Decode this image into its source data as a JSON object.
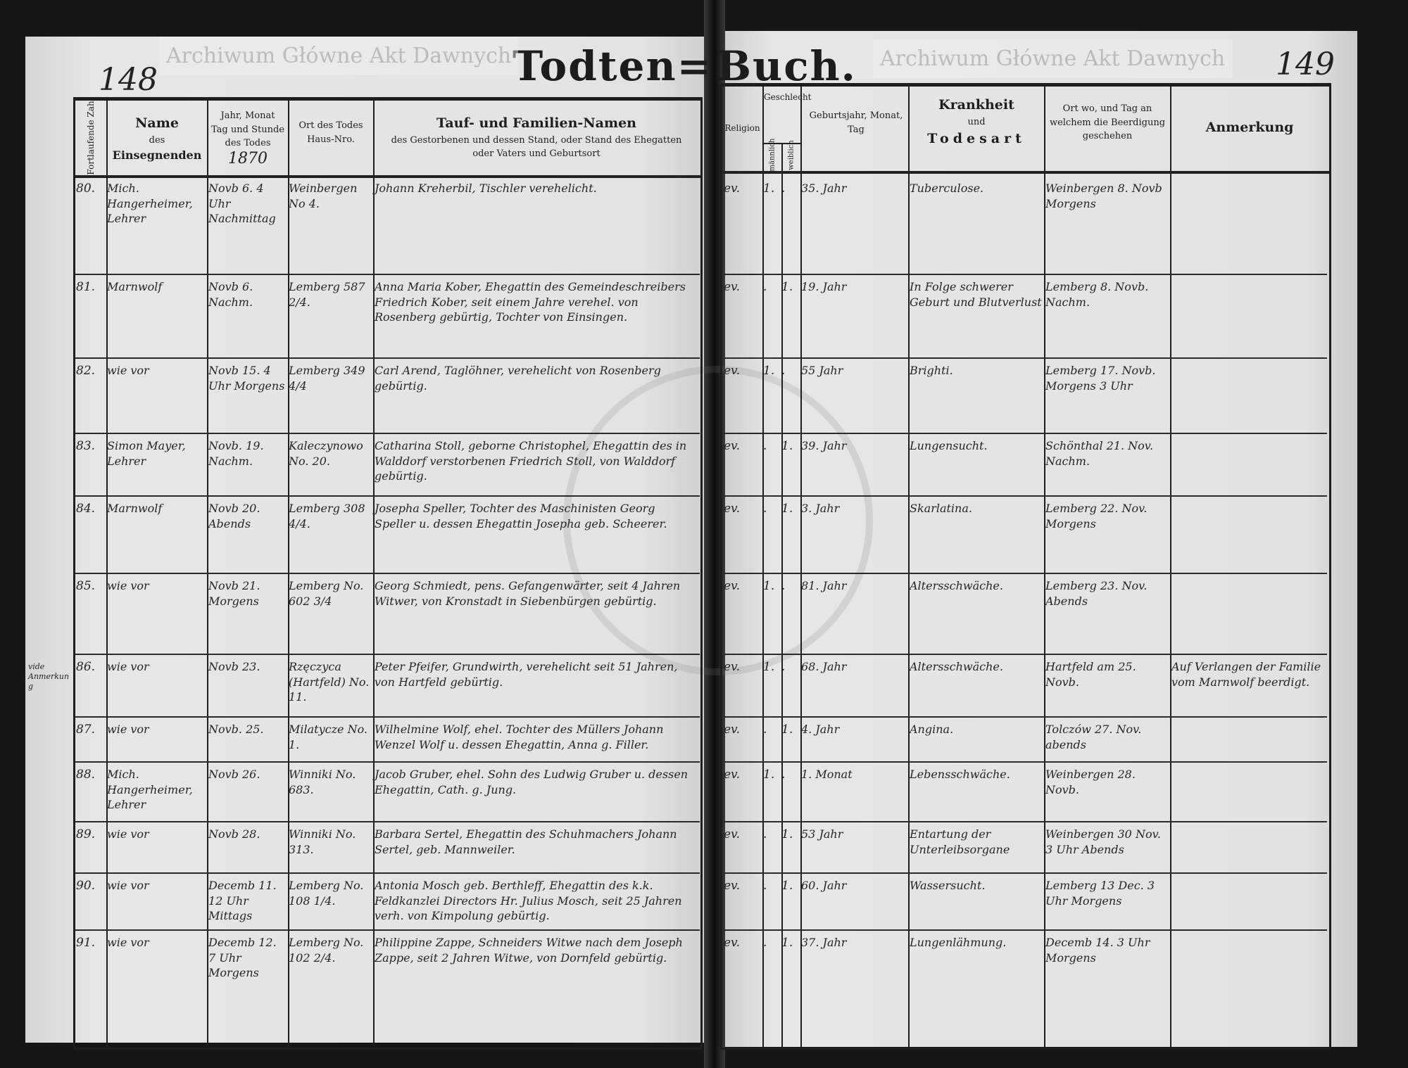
{
  "title": {
    "left": "Todten=",
    "right": "Buch."
  },
  "page_numbers": {
    "left": "148",
    "right": "149"
  },
  "year": "1870",
  "watermark": "Archiwum Główne Akt Dawnych",
  "headers": {
    "no": "Fortlaufende Zahl",
    "priest": [
      "Name",
      "des",
      "Einsegnenden"
    ],
    "date": [
      "Jahr, Monat",
      "Tag und Stunde",
      "des Todes"
    ],
    "place": [
      "Ort des Todes",
      "Haus-Nro."
    ],
    "names": [
      "Tauf- und Familien-Namen",
      "des Gestorbenen und dessen Stand, oder Stand des Ehegatten",
      "oder Vaters und Geburtsort"
    ],
    "religion": "Religion",
    "sex": "Geschlecht",
    "male": "männlich",
    "female": "weiblich",
    "birth": [
      "Geburtsjahr, Monat,",
      "Tag"
    ],
    "cause": [
      "Krankheit",
      "und",
      "Todesart"
    ],
    "burial": [
      "Ort wo, und Tag an",
      "welchem die Beerdigung",
      "geschehen"
    ],
    "remark": "Anmerkung"
  },
  "margin_note": "vide Anmerkung",
  "rows": [
    {
      "no": "80.",
      "priest": "Mich. Hangerheimer, Lehrer",
      "date": "Novb 6. 4 Uhr Nachmittag",
      "place": "Weinbergen No 4.",
      "names": "Johann Kreherbil, Tischler verehelicht.",
      "religion": "ev.",
      "male": "1.",
      "female": ".",
      "age": "35. Jahr",
      "cause": "Tuberculose.",
      "burial": "Weinbergen 8. Novb Morgens",
      "remark": ""
    },
    {
      "no": "81.",
      "priest": "Marnwolf",
      "date": "Novb 6. Nachm.",
      "place": "Lemberg 587 2/4.",
      "names": "Anna Maria Kober, Ehegattin des Gemeindeschreibers Friedrich Kober, seit einem Jahre verehel. von Rosenberg gebürtig, Tochter von Einsingen.",
      "religion": "ev.",
      "male": ".",
      "female": "1.",
      "age": "19. Jahr",
      "cause": "In Folge schwerer Geburt und Blutverlust",
      "burial": "Lemberg 8. Novb. Nachm.",
      "remark": ""
    },
    {
      "no": "82.",
      "priest": "wie vor",
      "date": "Novb 15. 4 Uhr Morgens",
      "place": "Lemberg 349 4/4",
      "names": "Carl Arend, Taglöhner, verehelicht von Rosenberg gebürtig.",
      "religion": "ev.",
      "male": "1.",
      "female": ".",
      "age": "55 Jahr",
      "cause": "Brighti.",
      "burial": "Lemberg 17. Novb. Morgens 3 Uhr",
      "remark": ""
    },
    {
      "no": "83.",
      "priest": "Simon Mayer, Lehrer",
      "date": "Novb. 19. Nachm.",
      "place": "Kaleczynowo No. 20.",
      "names": "Catharina Stoll, geborne Christophel, Ehegattin des in Walddorf verstorbenen Friedrich Stoll, von Walddorf gebürtig.",
      "religion": "ev.",
      "male": ".",
      "female": "1.",
      "age": "39. Jahr",
      "cause": "Lungensucht.",
      "burial": "Schönthal 21. Nov. Nachm.",
      "remark": ""
    },
    {
      "no": "84.",
      "priest": "Marnwolf",
      "date": "Novb 20. Abends",
      "place": "Lemberg 308 4/4.",
      "names": "Josepha Speller, Tochter des Maschinisten Georg Speller u. dessen Ehegattin Josepha geb. Scheerer.",
      "religion": "ev.",
      "male": ".",
      "female": "1.",
      "age": "3. Jahr",
      "cause": "Skarlatina.",
      "burial": "Lemberg 22. Nov. Morgens",
      "remark": ""
    },
    {
      "no": "85.",
      "priest": "wie vor",
      "date": "Novb 21. Morgens",
      "place": "Lemberg No. 602 3/4",
      "names": "Georg Schmiedt, pens. Gefangenwärter, seit 4 Jahren Witwer, von Kronstadt in Siebenbürgen gebürtig.",
      "religion": "ev.",
      "male": "1.",
      "female": ".",
      "age": "81. Jahr",
      "cause": "Altersschwäche.",
      "burial": "Lemberg 23. Nov. Abends",
      "remark": ""
    },
    {
      "no": "86.",
      "priest": "wie vor",
      "date": "Novb 23.",
      "place": "Rzęczyca (Hartfeld) No. 11.",
      "names": "Peter Pfeifer, Grundwirth, verehelicht seit 51 Jahren, von Hartfeld gebürtig.",
      "religion": "ev.",
      "male": "1.",
      "female": ".",
      "age": "68. Jahr",
      "cause": "Altersschwäche.",
      "burial": "Hartfeld am 25. Novb.",
      "remark": "Auf Verlangen der Familie vom Marnwolf beerdigt."
    },
    {
      "no": "87.",
      "priest": "wie vor",
      "date": "Novb. 25.",
      "place": "Milatycze No. 1.",
      "names": "Wilhelmine Wolf, ehel. Tochter des Müllers Johann Wenzel Wolf u. dessen Ehegattin, Anna g. Filler.",
      "religion": "ev.",
      "male": ".",
      "female": "1.",
      "age": "4. Jahr",
      "cause": "Angina.",
      "burial": "Tolczów 27. Nov. abends",
      "remark": ""
    },
    {
      "no": "88.",
      "priest": "Mich. Hangerheimer, Lehrer",
      "date": "Novb 26.",
      "place": "Winniki No. 683.",
      "names": "Jacob Gruber, ehel. Sohn des Ludwig Gruber u. dessen Ehegattin, Cath. g. Jung.",
      "religion": "ev.",
      "male": "1.",
      "female": ".",
      "age": "1. Monat",
      "cause": "Lebensschwäche.",
      "burial": "Weinbergen 28. Novb.",
      "remark": ""
    },
    {
      "no": "89.",
      "priest": "wie vor",
      "date": "Novb 28.",
      "place": "Winniki No. 313.",
      "names": "Barbara Sertel, Ehegattin des Schuhmachers Johann Sertel, geb. Mannweiler.",
      "religion": "ev.",
      "male": ".",
      "female": "1.",
      "age": "53 Jahr",
      "cause": "Entartung der Unterleibsorgane",
      "burial": "Weinbergen 30 Nov. 3 Uhr Abends",
      "remark": ""
    },
    {
      "no": "90.",
      "priest": "wie vor",
      "date": "Decemb 11. 12 Uhr Mittags",
      "place": "Lemberg No. 108 1/4.",
      "names": "Antonia Mosch geb. Berthleff, Ehegattin des k.k. Feldkanzlei Directors Hr. Julius Mosch, seit 25 Jahren verh. von Kimpolung gebürtig.",
      "religion": "ev.",
      "male": ".",
      "female": "1.",
      "age": "60. Jahr",
      "cause": "Wassersucht.",
      "burial": "Lemberg 13 Dec. 3 Uhr Morgens",
      "remark": ""
    },
    {
      "no": "91.",
      "priest": "wie vor",
      "date": "Decemb 12. 7 Uhr Morgens",
      "place": "Lemberg No. 102 2/4.",
      "names": "Philippine Zappe, Schneiders Witwe nach dem Joseph Zappe, seit 2 Jahren Witwe, von Dornfeld gebürtig.",
      "religion": "ev.",
      "male": ".",
      "female": "1.",
      "age": "37. Jahr",
      "cause": "Lungenlähmung.",
      "burial": "Decemb 14. 3 Uhr Morgens",
      "remark": ""
    }
  ]
}
